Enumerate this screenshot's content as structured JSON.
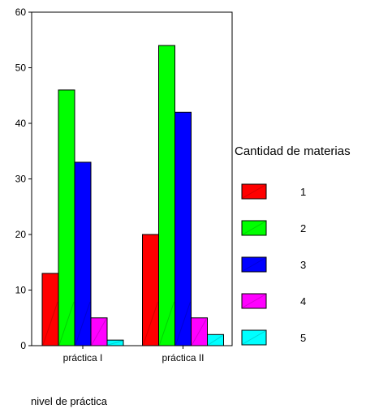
{
  "chart_data": {
    "type": "bar",
    "title": "",
    "xlabel": "nivel de práctica",
    "ylabel": "",
    "categories": [
      "práctica I",
      "práctica II"
    ],
    "ylim": [
      0,
      60
    ],
    "yticks": [
      0,
      10,
      20,
      30,
      40,
      50,
      60
    ],
    "grid": false,
    "legend": {
      "title": "Cantidad de materias",
      "placement": "right"
    },
    "series": [
      {
        "name": "1",
        "color": "#ff0000",
        "values": [
          13,
          20
        ]
      },
      {
        "name": "2",
        "color": "#00ff00",
        "values": [
          46,
          54
        ]
      },
      {
        "name": "3",
        "color": "#0000ff",
        "values": [
          33,
          42
        ]
      },
      {
        "name": "4",
        "color": "#ff00ff",
        "values": [
          5,
          5
        ]
      },
      {
        "name": "5",
        "color": "#00ffff",
        "values": [
          1,
          2
        ]
      }
    ]
  }
}
